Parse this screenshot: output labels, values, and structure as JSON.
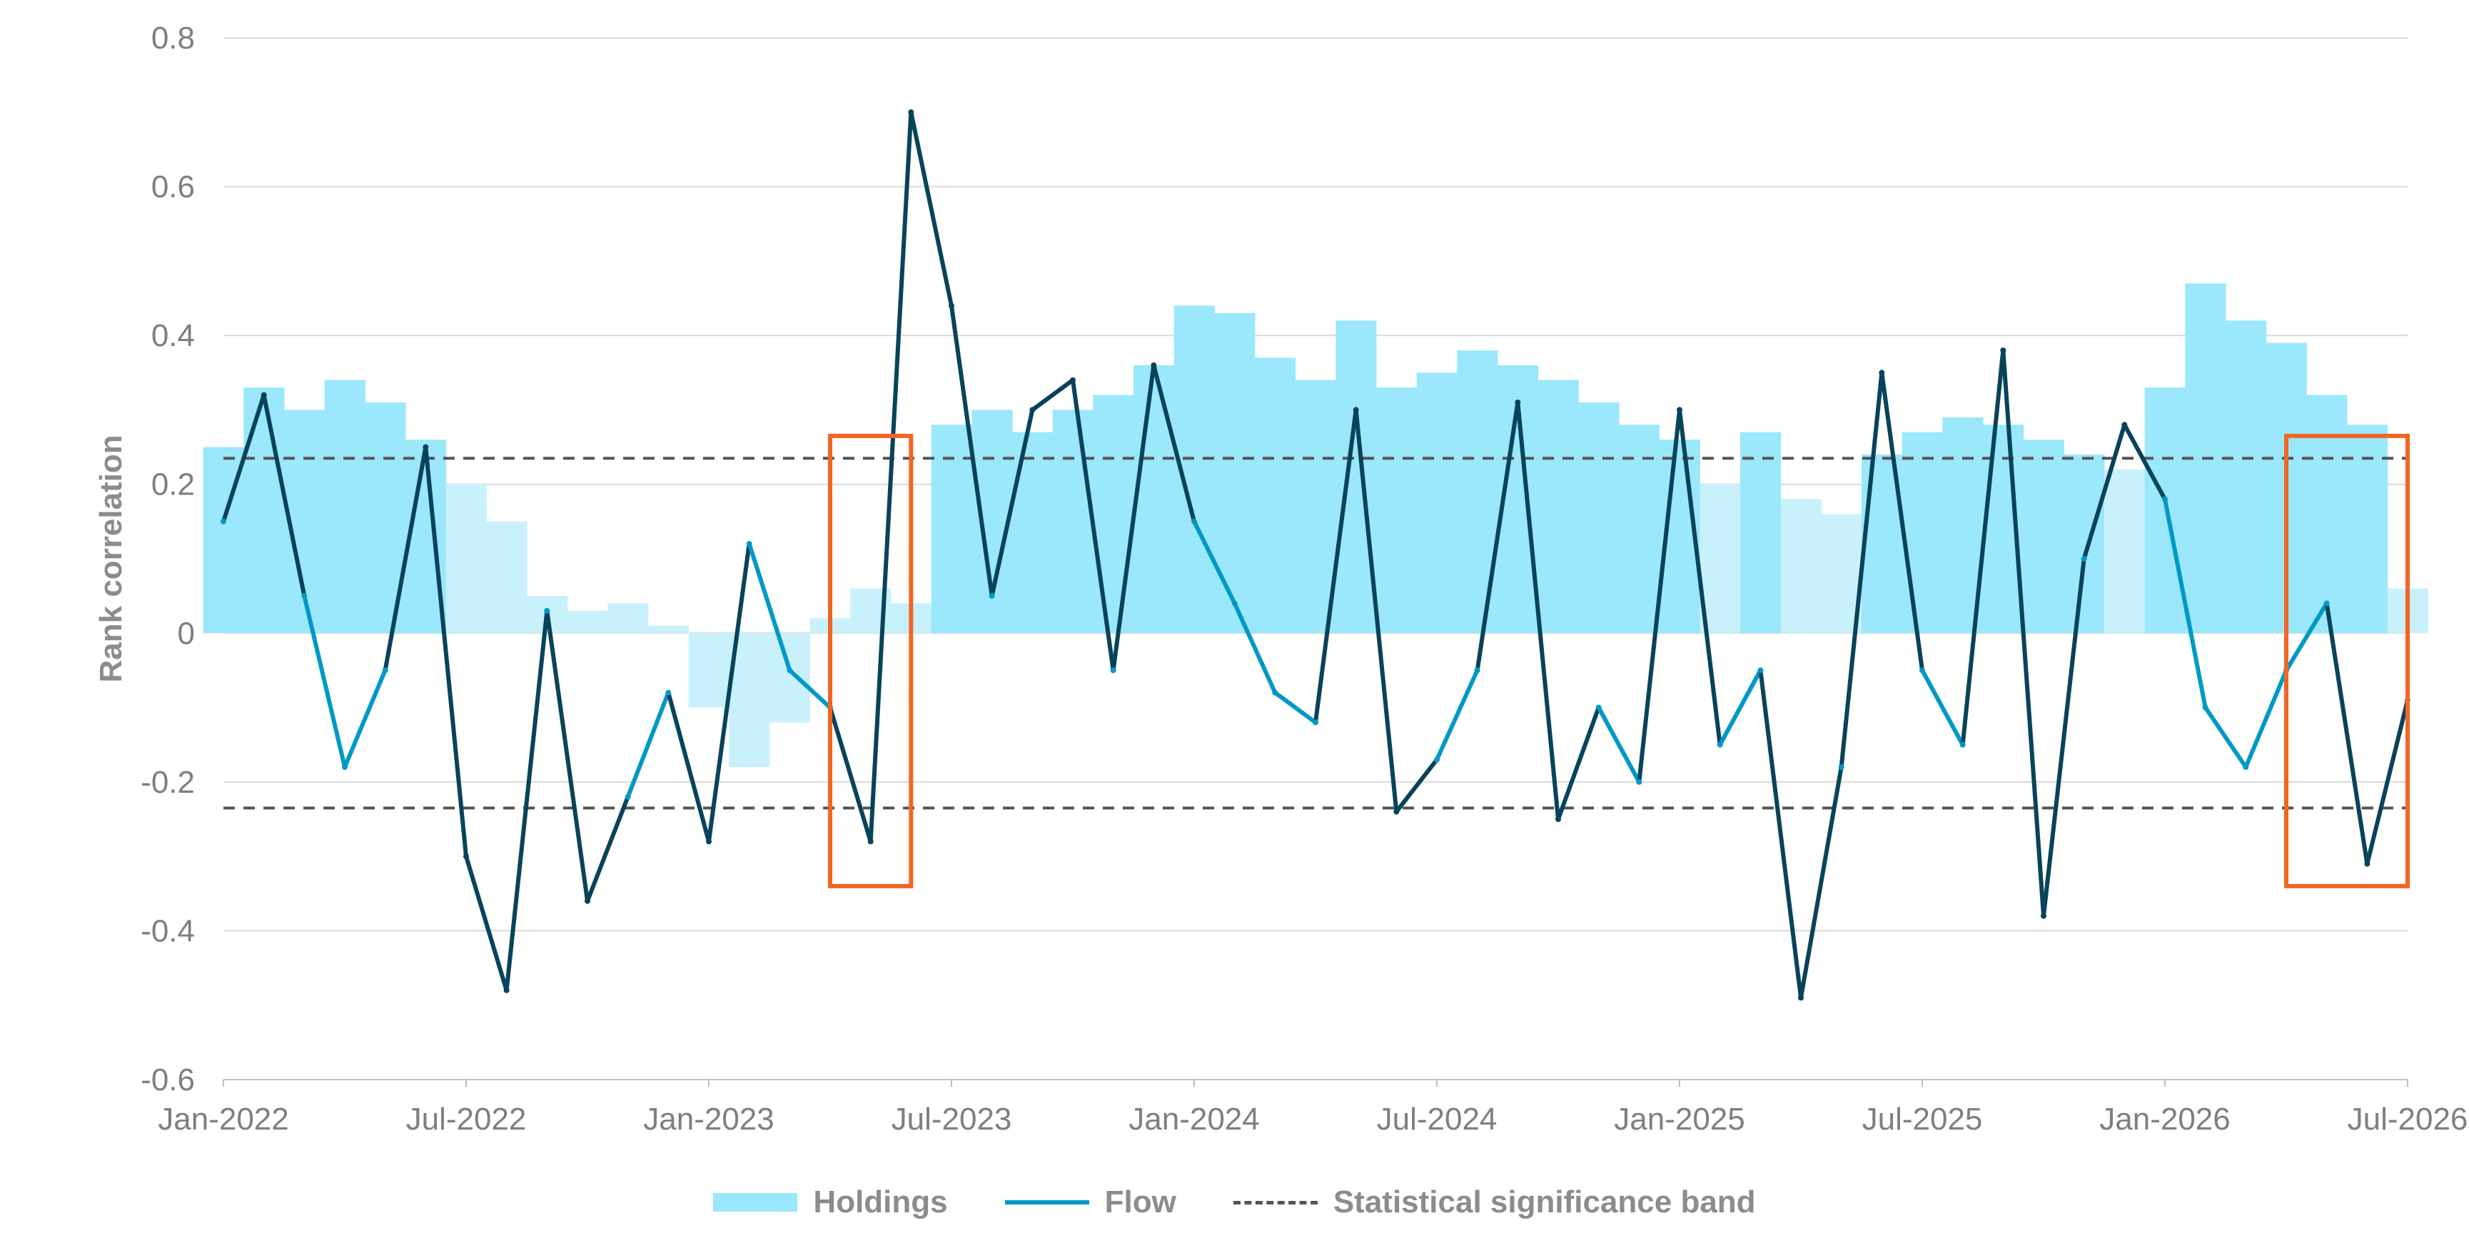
{
  "chart_data": {
    "type": "line",
    "title": "",
    "ylabel": "Rank correlation",
    "xlabel": "",
    "ylim": [
      -0.6,
      0.8
    ],
    "x_range": [
      "2022-01",
      "2026-07"
    ],
    "y_ticks": [
      0.8,
      0.6,
      0.4,
      0.2,
      0,
      -0.2,
      -0.4,
      -0.6
    ],
    "y_tick_labels": [
      "0.8",
      "0.6",
      "0.4",
      "0.2",
      "0",
      "-0.2",
      "-0.4",
      "-0.6"
    ],
    "x_ticks": [
      "2022-01",
      "2022-07",
      "2023-01",
      "2023-07",
      "2024-01",
      "2024-07",
      "2025-01",
      "2025-07",
      "2026-01",
      "2026-07"
    ],
    "x_tick_labels": [
      "Jan-2022",
      "Jul-2022",
      "Jan-2023",
      "Jul-2023",
      "Jan-2024",
      "Jul-2024",
      "Jan-2025",
      "Jul-2025",
      "Jan-2026",
      "Jul-2026"
    ],
    "grid": "horizontal",
    "legend_position": "bottom-center",
    "significance_band": [
      0.235,
      -0.235
    ],
    "highlight_boxes": [
      {
        "x_start": "2023-04",
        "x_end": "2023-06",
        "y_low": -0.34,
        "y_high": 0.265
      },
      {
        "x_start": "2026-04",
        "x_end": "2026-07",
        "y_low": -0.34,
        "y_high": 0.265
      }
    ],
    "series": [
      {
        "name": "Holdings",
        "type": "area",
        "x": [
          "2022-01",
          "2022-02",
          "2022-03",
          "2022-04",
          "2022-05",
          "2022-06",
          "2022-07",
          "2022-08",
          "2022-09",
          "2022-10",
          "2022-11",
          "2022-12",
          "2023-01",
          "2023-02",
          "2023-03",
          "2023-04",
          "2023-05",
          "2023-06",
          "2023-07",
          "2023-08",
          "2023-09",
          "2023-10",
          "2023-11",
          "2023-12",
          "2024-01",
          "2024-02",
          "2024-03",
          "2024-04",
          "2024-05",
          "2024-06",
          "2024-07",
          "2024-08",
          "2024-09",
          "2024-10",
          "2024-11",
          "2024-12",
          "2025-01",
          "2025-02",
          "2025-03",
          "2025-04",
          "2025-05",
          "2025-06",
          "2025-07",
          "2025-08",
          "2025-09",
          "2025-10",
          "2025-11",
          "2025-12",
          "2026-01",
          "2026-02",
          "2026-03",
          "2026-04",
          "2026-05",
          "2026-06",
          "2026-07"
        ],
        "values": [
          0.25,
          0.33,
          0.3,
          0.34,
          0.31,
          0.26,
          0.2,
          0.15,
          0.05,
          0.03,
          0.04,
          0.01,
          -0.1,
          -0.18,
          -0.12,
          0.02,
          0.06,
          0.04,
          0.28,
          0.3,
          0.27,
          0.3,
          0.32,
          0.36,
          0.44,
          0.43,
          0.37,
          0.34,
          0.42,
          0.33,
          0.35,
          0.38,
          0.36,
          0.34,
          0.31,
          0.28,
          0.26,
          0.2,
          0.27,
          0.18,
          0.16,
          0.24,
          0.27,
          0.29,
          0.28,
          0.26,
          0.24,
          0.22,
          0.33,
          0.47,
          0.42,
          0.39,
          0.32,
          0.28,
          0.06
        ],
        "color": "#9be7fb"
      },
      {
        "name": "Flow",
        "type": "line",
        "x": [
          "2022-01",
          "2022-02",
          "2022-03",
          "2022-04",
          "2022-05",
          "2022-06",
          "2022-07",
          "2022-08",
          "2022-09",
          "2022-10",
          "2022-11",
          "2022-12",
          "2023-01",
          "2023-02",
          "2023-03",
          "2023-04",
          "2023-05",
          "2023-06",
          "2023-07",
          "2023-08",
          "2023-09",
          "2023-10",
          "2023-11",
          "2023-12",
          "2024-01",
          "2024-02",
          "2024-03",
          "2024-04",
          "2024-05",
          "2024-06",
          "2024-07",
          "2024-08",
          "2024-09",
          "2024-10",
          "2024-11",
          "2024-12",
          "2025-01",
          "2025-02",
          "2025-03",
          "2025-04",
          "2025-05",
          "2025-06",
          "2025-07",
          "2025-08",
          "2025-09",
          "2025-10",
          "2025-11",
          "2025-12",
          "2026-01",
          "2026-02",
          "2026-03",
          "2026-04",
          "2026-05",
          "2026-06",
          "2026-07"
        ],
        "values": [
          0.15,
          0.32,
          0.05,
          -0.18,
          -0.05,
          0.25,
          -0.3,
          -0.48,
          0.03,
          -0.36,
          -0.22,
          -0.08,
          -0.28,
          0.12,
          -0.05,
          -0.1,
          -0.28,
          0.7,
          0.44,
          0.05,
          0.3,
          0.34,
          -0.05,
          0.36,
          0.15,
          0.04,
          -0.08,
          -0.12,
          0.3,
          -0.24,
          -0.17,
          -0.05,
          0.31,
          -0.25,
          -0.1,
          -0.2,
          0.3,
          -0.15,
          -0.05,
          -0.49,
          -0.18,
          0.35,
          -0.05,
          -0.15,
          0.38,
          -0.38,
          0.1,
          0.28,
          0.18,
          -0.1,
          -0.18,
          -0.05,
          0.04,
          -0.31,
          -0.09
        ],
        "color": "#0099c6",
        "dark_color": "#08435b"
      },
      {
        "name": "Statistical significance band",
        "type": "dashed-line",
        "values": [
          0.235,
          -0.235
        ],
        "color": "#555555"
      }
    ]
  },
  "legend": {
    "holdings_label": "Holdings",
    "flow_label": "Flow",
    "band_label": "Statistical significance band"
  },
  "colors": {
    "holdings_fill": "#9be7fb",
    "holdings_fill_light": "#c8f1fc",
    "flow_line": "#0099c6",
    "flow_line_significant": "#08435b",
    "band": "#555555",
    "highlight_box": "#f26522",
    "grid": "#d9d9d9"
  }
}
